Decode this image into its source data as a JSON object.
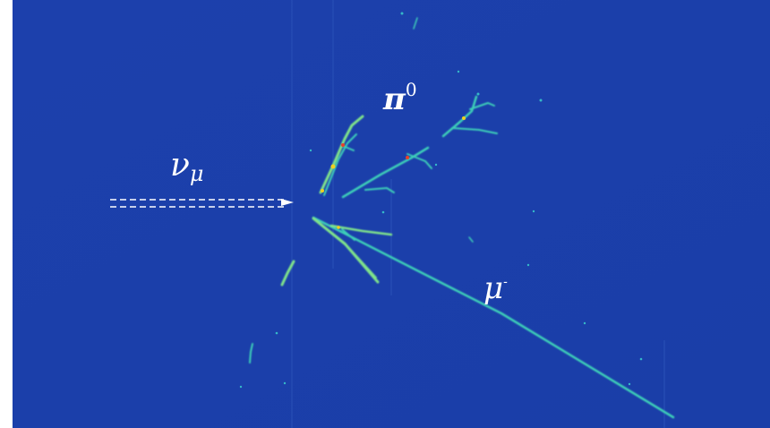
{
  "labels": {
    "neutrino": {
      "symbol": "ν",
      "subscript": "μ"
    },
    "pion": {
      "symbol": "π",
      "superscript": "0"
    },
    "muon": {
      "symbol": "μ",
      "superscript": "-"
    }
  }
}
